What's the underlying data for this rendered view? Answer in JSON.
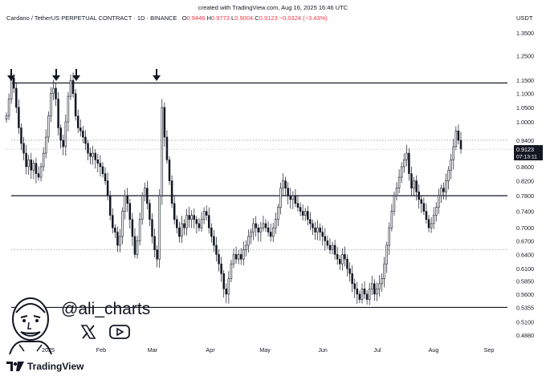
{
  "header": {
    "created": "created with TradingView.com, Aug 16, 2025 16:46 UTC",
    "symbol": "Cardano / TetherUS PERPETUAL CONTRACT · 1D · BINANCE",
    "ohlc": {
      "o_label": "O",
      "o": "0.9446",
      "h_label": "H",
      "h": "0.9773",
      "l_label": "L",
      "l": "0.9004",
      "c_label": "C",
      "c": "0.9123",
      "change": "−0.0324 (−3.43%)"
    },
    "axis_currency": "USDT"
  },
  "price_tag": {
    "price": "0.9123",
    "countdown": "07:13:11",
    "color": "#131722"
  },
  "branding": {
    "handle": "@ali_charts",
    "logo_text": "TradingView",
    "x_icon": "x-logo-icon",
    "youtube_icon": "youtube-icon"
  },
  "colors": {
    "up": "#ffffff",
    "down": "#131722",
    "line": "#131722",
    "dotted": "#9598a1"
  },
  "chart_data": {
    "type": "candlestick",
    "yscale": "log",
    "ylim": [
      0.48,
      1.39
    ],
    "y_ticks": [
      1.35,
      1.25,
      1.15,
      1.1,
      1.05,
      1.0,
      0.94,
      0.9123,
      0.86,
      0.82,
      0.78,
      0.74,
      0.7,
      0.67,
      0.64,
      0.61,
      0.585,
      0.56,
      0.5355,
      0.51,
      0.488
    ],
    "y_tick_labels": [
      "1.3500",
      "1.2500",
      "1.1500",
      "1.1000",
      "1.0500",
      "1.0000",
      "0.9400",
      "0.9123",
      "0.8600",
      "0.8200",
      "0.7800",
      "0.7400",
      "0.7000",
      "0.6700",
      "0.6400",
      "0.6100",
      "0.5850",
      "0.5600",
      "0.5355",
      "0.5100",
      "0.4880"
    ],
    "x_tick_labels": [
      "2025",
      "Feb",
      "Mar",
      "Apr",
      "May",
      "Jun",
      "Jul",
      "Aug",
      "Sep"
    ],
    "horizontal_levels": [
      {
        "price": 1.14,
        "style": "solid"
      },
      {
        "price": 0.78,
        "style": "solid"
      },
      {
        "price": 0.5355,
        "style": "solid"
      },
      {
        "price": 0.94,
        "style": "dotted"
      },
      {
        "price": 0.65,
        "style": "dotted"
      }
    ],
    "arrows_at_highs": [
      1.2,
      1.2,
      1.2,
      1.2
    ],
    "candles_close_path": [
      1.02,
      1.08,
      1.16,
      1.12,
      1.05,
      0.98,
      0.93,
      0.9,
      0.86,
      0.88,
      0.85,
      0.87,
      0.84,
      0.83,
      0.86,
      0.9,
      0.95,
      1.02,
      1.1,
      1.12,
      1.08,
      0.98,
      0.94,
      0.92,
      1.0,
      1.09,
      1.15,
      1.1,
      1.02,
      0.98,
      0.97,
      0.95,
      0.93,
      0.9,
      0.89,
      0.9,
      0.88,
      0.87,
      0.86,
      0.84,
      0.82,
      0.78,
      0.73,
      0.7,
      0.69,
      0.66,
      0.68,
      0.74,
      0.78,
      0.76,
      0.72,
      0.68,
      0.64,
      0.67,
      0.72,
      0.78,
      0.8,
      0.76,
      0.72,
      0.68,
      0.65,
      0.63,
      0.78,
      1.05,
      0.95,
      0.88,
      0.82,
      0.76,
      0.72,
      0.7,
      0.68,
      0.71,
      0.7,
      0.73,
      0.72,
      0.73,
      0.72,
      0.71,
      0.7,
      0.72,
      0.74,
      0.73,
      0.7,
      0.68,
      0.66,
      0.64,
      0.62,
      0.6,
      0.57,
      0.56,
      0.59,
      0.62,
      0.64,
      0.63,
      0.64,
      0.63,
      0.65,
      0.66,
      0.68,
      0.69,
      0.71,
      0.7,
      0.69,
      0.7,
      0.71,
      0.7,
      0.69,
      0.68,
      0.7,
      0.72,
      0.75,
      0.8,
      0.82,
      0.8,
      0.78,
      0.77,
      0.78,
      0.76,
      0.75,
      0.74,
      0.73,
      0.74,
      0.72,
      0.71,
      0.7,
      0.69,
      0.7,
      0.69,
      0.68,
      0.67,
      0.66,
      0.65,
      0.66,
      0.64,
      0.63,
      0.62,
      0.64,
      0.63,
      0.61,
      0.6,
      0.58,
      0.57,
      0.56,
      0.55,
      0.57,
      0.56,
      0.55,
      0.57,
      0.58,
      0.56,
      0.57,
      0.58,
      0.59,
      0.62,
      0.66,
      0.7,
      0.74,
      0.78,
      0.8,
      0.83,
      0.86,
      0.88,
      0.9,
      0.84,
      0.8,
      0.82,
      0.79,
      0.77,
      0.76,
      0.74,
      0.72,
      0.7,
      0.71,
      0.73,
      0.75,
      0.78,
      0.8,
      0.79,
      0.82,
      0.85,
      0.88,
      0.92,
      0.97,
      0.94,
      0.9123
    ]
  }
}
